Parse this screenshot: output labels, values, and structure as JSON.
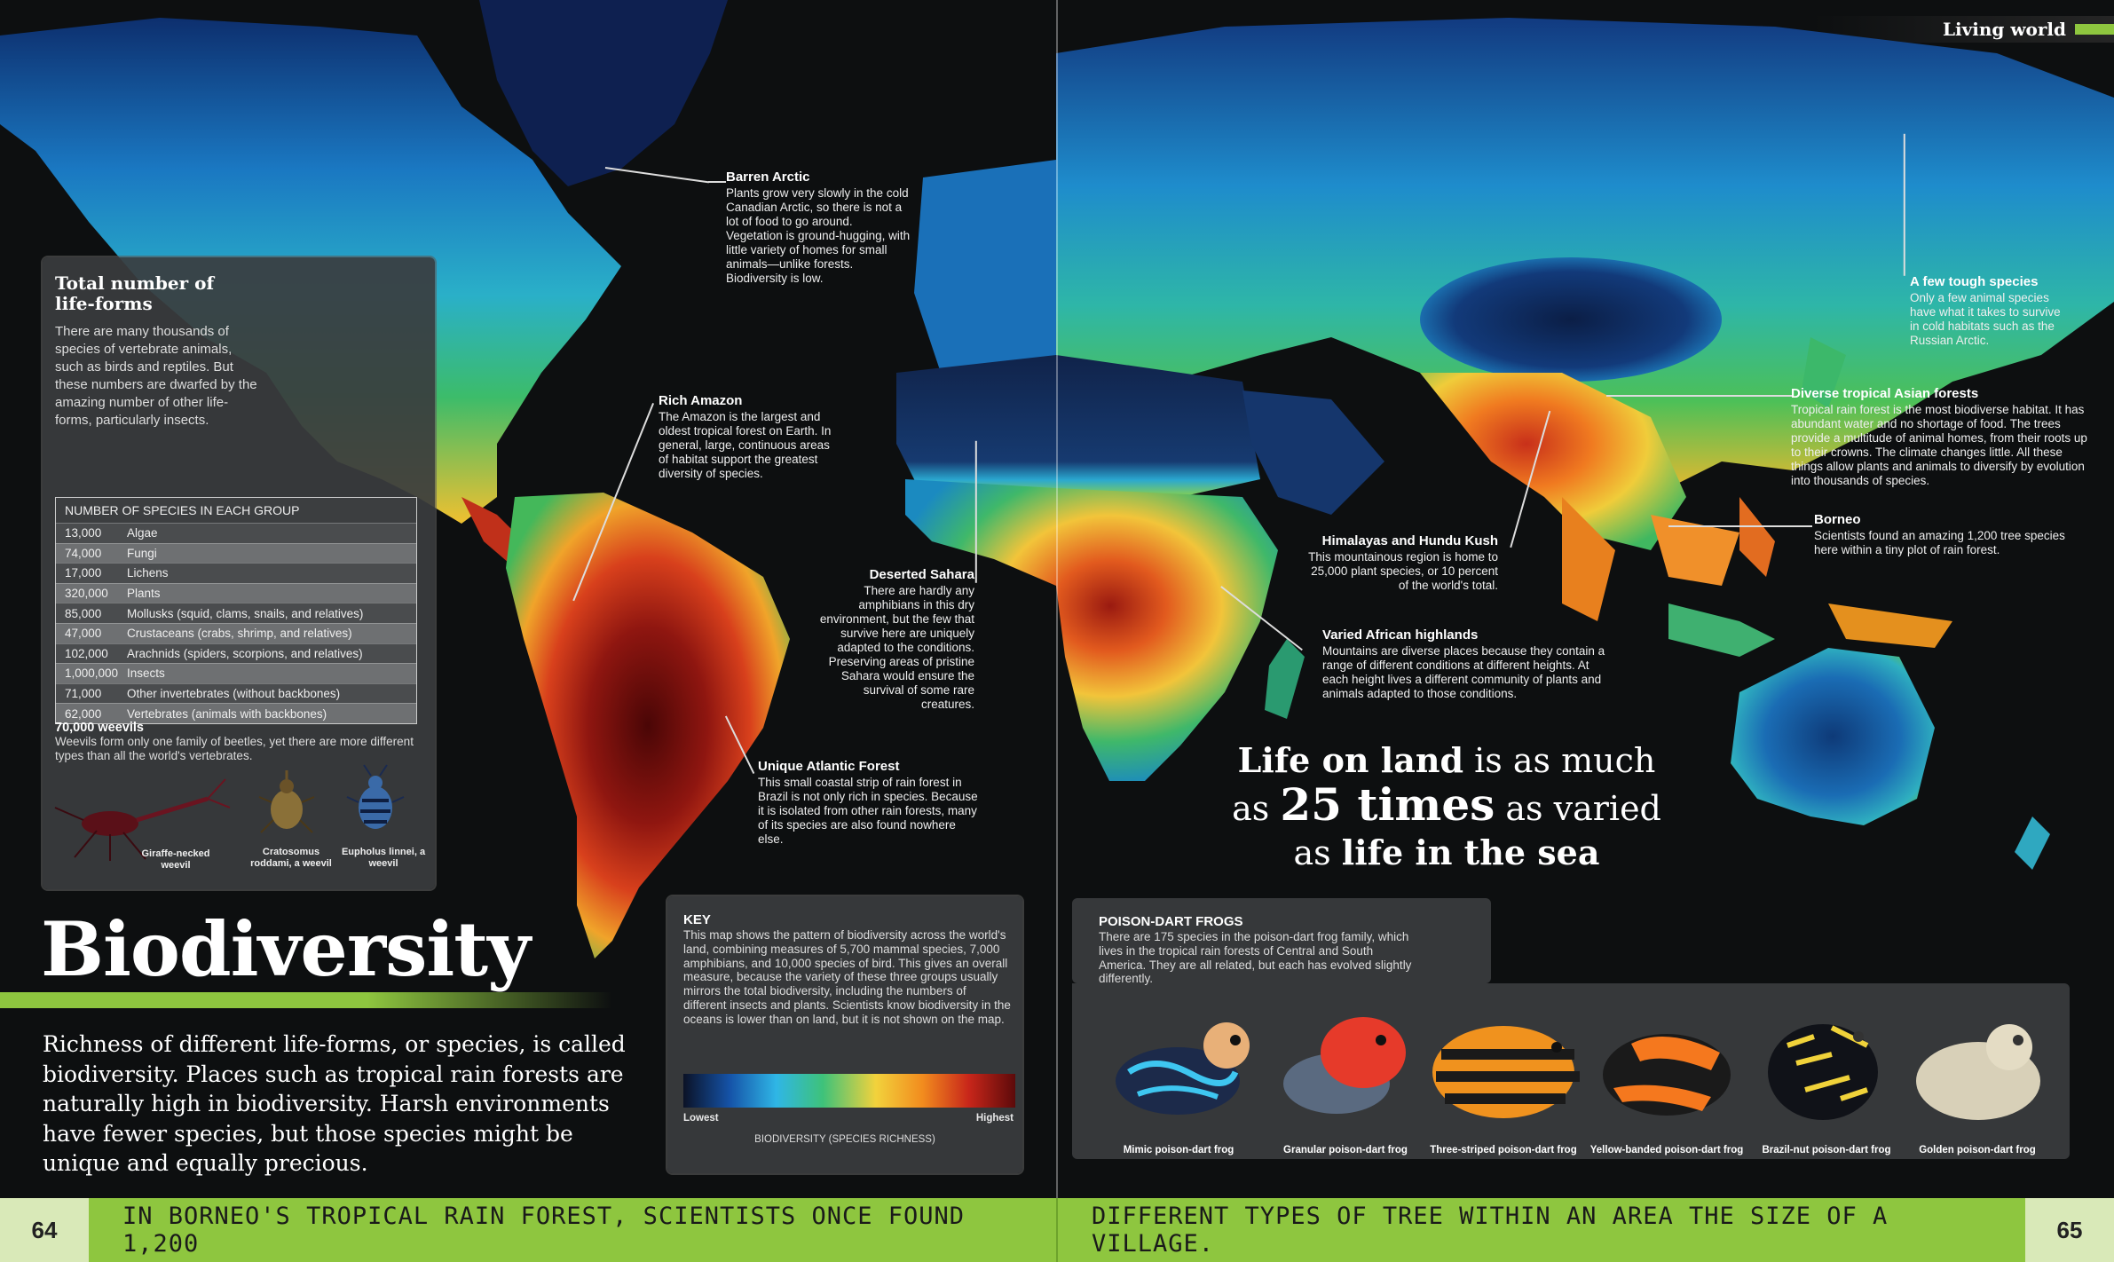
{
  "section_label": "Living world",
  "title": "Biodiversity",
  "intro": "Richness of different life-forms, or species, is called biodiversity. Places such as tropical rain forests are naturally high in biodiversity. Harsh environments have fewer species, but those species might be unique and equally precious.",
  "lifeforms": {
    "heading": "Total number of life-forms",
    "text": "There are many thousands of species of vertebrate animals, such as birds and reptiles. But these numbers are dwarfed by the amazing number of other life-forms, particularly insects.",
    "table_header": "NUMBER OF SPECIES IN EACH GROUP",
    "rows": [
      {
        "n": "13,000",
        "group": "Algae"
      },
      {
        "n": "74,000",
        "group": "Fungi"
      },
      {
        "n": "17,000",
        "group": "Lichens"
      },
      {
        "n": "320,000",
        "group": "Plants"
      },
      {
        "n": "85,000",
        "group": "Mollusks (squid, clams, snails, and relatives)"
      },
      {
        "n": "47,000",
        "group": "Crustaceans (crabs, shrimp, and relatives)"
      },
      {
        "n": "102,000",
        "group": "Arachnids (spiders, scorpions, and relatives)"
      },
      {
        "n": "1,000,000",
        "group": "Insects"
      },
      {
        "n": "71,000",
        "group": "Other invertebrates (without backbones)"
      },
      {
        "n": "62,000",
        "group": "Vertebrates (animals with backbones)"
      }
    ],
    "weevils_heading": "70,000 weevils",
    "weevils_text": "Weevils form only one family of beetles, yet there are more different types than all the world's vertebrates.",
    "weevil_captions": [
      "Giraffe-necked weevil",
      "Cratosomus roddami, a weevil",
      "Eupholus linnei, a weevil"
    ]
  },
  "callouts": {
    "barren_arctic": {
      "title": "Barren Arctic",
      "text": "Plants grow very slowly in the cold Canadian Arctic, so there is not a lot of food to go around. Vegetation is ground-hugging, with little variety of homes for small animals—unlike forests. Biodiversity is low."
    },
    "rich_amazon": {
      "title": "Rich Amazon",
      "text": "The Amazon is the largest and oldest tropical forest on Earth. In general, large, continuous areas of habitat support the greatest diversity of species."
    },
    "deserted_sahara": {
      "title": "Deserted Sahara",
      "text": "There are hardly any amphibians in this dry environment, but the few that survive here are uniquely adapted to the conditions. Preserving areas of pristine Sahara would ensure the survival of some rare creatures."
    },
    "atlantic_forest": {
      "title": "Unique Atlantic Forest",
      "text": "This small coastal strip of rain forest in Brazil is not only rich in species. Because it is isolated from other rain forests, many of its species are also found nowhere else."
    },
    "tough_species": {
      "title": "A few tough species",
      "text": "Only a few animal species have what it takes to survive in cold habitats such as the Russian Arctic."
    },
    "asian_forests": {
      "title": "Diverse tropical Asian forests",
      "text": "Tropical rain forest is the most biodiverse habitat. It has abundant water and no shortage of food. The trees provide a multitude of animal homes, from their roots up to their crowns. The climate changes little. All these things allow plants and animals to diversify by evolution into thousands of species."
    },
    "borneo": {
      "title": "Borneo",
      "text": "Scientists found an amazing 1,200 tree species here within a tiny plot of rain forest."
    },
    "himalayas": {
      "title": "Himalayas and Hundu Kush",
      "text": "This mountainous region is home to 25,000 plant species, or 10 percent of the world's total."
    },
    "african_highlands": {
      "title": "Varied African highlands",
      "text": "Mountains are diverse places because they contain a range of different conditions at different heights. At each height lives a different community of plants and animals adapted to those conditions."
    }
  },
  "quote": {
    "p1": "Life on land",
    "p2": " is as much",
    "p3": "as ",
    "p4": "25 times",
    "p5": " as varied",
    "p6": "as ",
    "p7": "life in the sea"
  },
  "key": {
    "heading": "KEY",
    "text": "This map shows the pattern of biodiversity across the world's land, combining measures of 5,700 mammal species, 7,000 amphibians, and 10,000 species of bird. This gives an overall measure, because the variety of these three groups usually mirrors the total biodiversity, including the numbers of different insects and plants. Scientists know biodiversity in the oceans is lower than on land, but it is not shown on the map.",
    "low": "Lowest",
    "high": "Highest",
    "scale_title": "BIODIVERSITY (SPECIES RICHNESS)"
  },
  "frogs": {
    "heading": "POISON-DART FROGS",
    "text": "There are 175 species in the poison-dart frog family, which lives in the tropical rain forests of Central and South America. They are all related, but each has evolved slightly differently.",
    "names": [
      "Mimic poison-dart frog",
      "Granular poison-dart frog",
      "Three-striped poison-dart frog",
      "Yellow-banded poison-dart frog",
      "Brazil-nut poison-dart frog",
      "Golden poison-dart frog"
    ]
  },
  "footer": {
    "left_page": "64",
    "right_page": "65",
    "left_text": "IN BORNEO'S TROPICAL RAIN FOREST, SCIENTISTS ONCE FOUND 1,200",
    "right_text": "DIFFERENT TYPES OF TREE WITHIN AN AREA THE SIZE OF A VILLAGE."
  },
  "colors": {
    "accent_green": "#8ec63f",
    "panel": "#3a3c3e",
    "background": "#0d0f10"
  }
}
